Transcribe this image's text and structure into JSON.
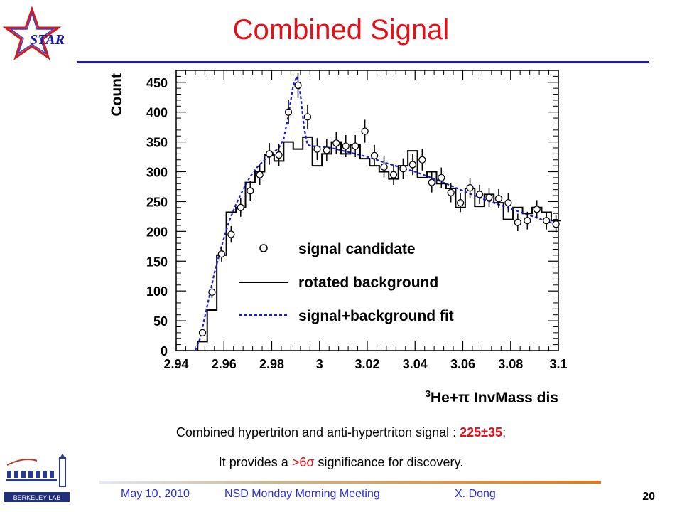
{
  "slide": {
    "title": "Combined Signal",
    "logo_text": "STAR",
    "lab_logo_text": "BERKELEY LAB",
    "caption_line1_prefix": "Combined hypertriton and anti-hypertriton signal : ",
    "caption_line1_value": "225±35",
    "caption_line1_suffix": ";",
    "caption_line2_prefix": "It provides a ",
    "caption_line2_sig": ">6",
    "caption_line2_sigma": "σ",
    "caption_line2_suffix": " significance for discovery.",
    "footer_date": "May 10, 2010",
    "footer_meeting": "NSD Monday Morning Meeting",
    "footer_author": "X. Dong",
    "page_number": "20"
  },
  "colors": {
    "title": "#e3101a",
    "accent_rule": "#1f1aa8",
    "footer_text": "#2b2bd6",
    "fit_line": "#1a1ad6",
    "histogram": "#000000"
  },
  "chart_data": {
    "type": "scatter",
    "xlabel": "³He+π InvMass dis",
    "xlabel_sup": "3",
    "xlabel_main": "He+π InvMass dis",
    "ylabel": "Count",
    "xlim": [
      2.94,
      3.1
    ],
    "ylim": [
      0,
      470
    ],
    "xticks": [
      "2.94",
      "2.96",
      "2.98",
      "3",
      "3.02",
      "3.04",
      "3.06",
      "3.08",
      "3.1"
    ],
    "xtick_values": [
      2.94,
      2.96,
      2.98,
      3.0,
      3.02,
      3.04,
      3.06,
      3.08,
      3.1
    ],
    "yticks": [
      "0",
      "50",
      "100",
      "150",
      "200",
      "250",
      "300",
      "350",
      "400",
      "450"
    ],
    "ytick_values": [
      0,
      50,
      100,
      150,
      200,
      250,
      300,
      350,
      400,
      450
    ],
    "legend": {
      "placement": "center-right",
      "entries": [
        "signal candidate",
        "rotated background",
        "signal+background fit"
      ]
    },
    "series": [
      {
        "name": "signal candidate",
        "style": "open-circle-with-error",
        "x": [
          2.951,
          2.955,
          2.959,
          2.963,
          2.967,
          2.971,
          2.975,
          2.979,
          2.983,
          2.987,
          2.991,
          2.995,
          2.999,
          3.003,
          3.007,
          3.011,
          3.015,
          3.019,
          3.023,
          3.027,
          3.031,
          3.035,
          3.039,
          3.043,
          3.047,
          3.051,
          3.055,
          3.059,
          3.063,
          3.067,
          3.071,
          3.075,
          3.079,
          3.083,
          3.087,
          3.091,
          3.095,
          3.099
        ],
        "y": [
          30,
          98,
          162,
          195,
          240,
          268,
          295,
          330,
          328,
          400,
          445,
          392,
          338,
          336,
          348,
          343,
          343,
          368,
          327,
          308,
          295,
          305,
          312,
          320,
          282,
          290,
          265,
          248,
          273,
          262,
          257,
          255,
          248,
          215,
          218,
          237,
          218,
          212
        ]
      },
      {
        "name": "rotated background",
        "style": "step-histogram",
        "edges": [
          2.949,
          2.953,
          2.957,
          2.961,
          2.965,
          2.969,
          2.973,
          2.977,
          2.981,
          2.985,
          2.989,
          2.993,
          2.997,
          3.001,
          3.005,
          3.009,
          3.013,
          3.017,
          3.021,
          3.025,
          3.029,
          3.033,
          3.037,
          3.041,
          3.045,
          3.049,
          3.053,
          3.057,
          3.061,
          3.065,
          3.069,
          3.073,
          3.077,
          3.081,
          3.085,
          3.089,
          3.093,
          3.097,
          3.101
        ],
        "values": [
          15,
          68,
          160,
          232,
          240,
          282,
          300,
          328,
          318,
          350,
          338,
          358,
          310,
          330,
          350,
          330,
          345,
          322,
          310,
          300,
          288,
          310,
          335,
          290,
          300,
          280,
          272,
          240,
          272,
          242,
          262,
          248,
          220,
          240,
          230,
          240,
          232,
          218
        ]
      },
      {
        "name": "signal+background fit",
        "style": "dashed-line",
        "x": [
          2.948,
          2.95,
          2.953,
          2.956,
          2.959,
          2.962,
          2.965,
          2.968,
          2.971,
          2.974,
          2.977,
          2.98,
          2.983,
          2.985,
          2.987,
          2.989,
          2.9905,
          2.992,
          2.9935,
          2.995,
          2.997,
          3.0,
          3.005,
          3.01,
          3.02,
          3.03,
          3.04,
          3.05,
          3.06,
          3.07,
          3.08,
          3.09,
          3.1
        ],
        "y": [
          0,
          20,
          75,
          130,
          175,
          215,
          245,
          270,
          292,
          308,
          320,
          330,
          340,
          355,
          395,
          445,
          460,
          430,
          375,
          345,
          343,
          342,
          340,
          335,
          325,
          312,
          300,
          285,
          268,
          252,
          238,
          224,
          210
        ]
      }
    ]
  }
}
